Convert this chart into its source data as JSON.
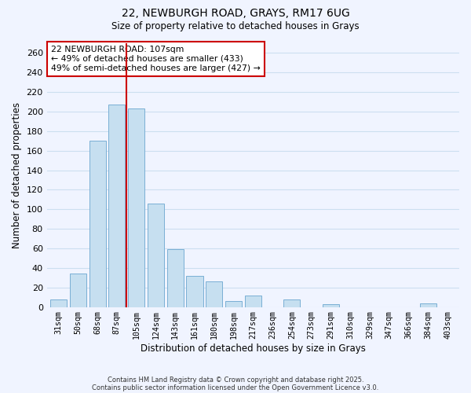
{
  "title": "22, NEWBURGH ROAD, GRAYS, RM17 6UG",
  "subtitle": "Size of property relative to detached houses in Grays",
  "xlabel": "Distribution of detached houses by size in Grays",
  "ylabel": "Number of detached properties",
  "bar_labels": [
    "31sqm",
    "50sqm",
    "68sqm",
    "87sqm",
    "105sqm",
    "124sqm",
    "143sqm",
    "161sqm",
    "180sqm",
    "198sqm",
    "217sqm",
    "236sqm",
    "254sqm",
    "273sqm",
    "291sqm",
    "310sqm",
    "329sqm",
    "347sqm",
    "366sqm",
    "384sqm",
    "403sqm"
  ],
  "bar_values": [
    8,
    34,
    170,
    207,
    203,
    106,
    59,
    32,
    26,
    6,
    12,
    0,
    8,
    0,
    3,
    0,
    0,
    0,
    0,
    4,
    0
  ],
  "bar_color": "#c6dff0",
  "bar_edge_color": "#7aafd4",
  "vline_x": 3.5,
  "vline_color": "#cc0000",
  "ylim": [
    0,
    270
  ],
  "yticks": [
    0,
    20,
    40,
    60,
    80,
    100,
    120,
    140,
    160,
    180,
    200,
    220,
    240,
    260
  ],
  "annotation_title": "22 NEWBURGH ROAD: 107sqm",
  "annotation_line1": "← 49% of detached houses are smaller (433)",
  "annotation_line2": "49% of semi-detached houses are larger (427) →",
  "footnote1": "Contains HM Land Registry data © Crown copyright and database right 2025.",
  "footnote2": "Contains public sector information licensed under the Open Government Licence v3.0.",
  "grid_color": "#ccdff0",
  "background_color": "#f0f4ff"
}
